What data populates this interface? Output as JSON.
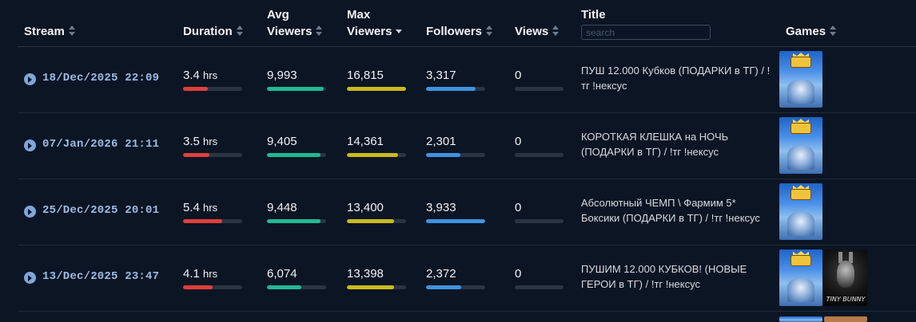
{
  "header": {
    "stream": "Stream",
    "duration": "Duration",
    "avg_line1": "Avg",
    "avg_line2": "Viewers",
    "max_line1": "Max",
    "max_line2": "Viewers",
    "followers": "Followers",
    "views": "Views",
    "title": "Title",
    "search_placeholder": "search",
    "games": "Games"
  },
  "colors": {
    "duration": "#e0403a",
    "avg_viewers": "#22b894",
    "max_viewers": "#c9bb1e",
    "followers": "#3f93de",
    "track": "#2a3442"
  },
  "rows": [
    {
      "date": "18/Dec/2025 22:09",
      "duration_value": "3.4",
      "duration_unit": "hrs",
      "duration_fill": 0.42,
      "avg_viewers": "9,993",
      "avg_fill": 0.96,
      "max_viewers": "16,815",
      "max_fill": 1.0,
      "followers": "3,317",
      "followers_fill": 0.84,
      "views": "0",
      "views_fill": 0,
      "title": "ПУШ 12.000 Кубков (ПОДАРКИ в ТГ) / !тг !нексус",
      "games": [
        "clash-royale-icon"
      ]
    },
    {
      "date": "07/Jan/2026 21:11",
      "duration_value": "3.5",
      "duration_unit": "hrs",
      "duration_fill": 0.44,
      "avg_viewers": "9,405",
      "avg_fill": 0.91,
      "max_viewers": "14,361",
      "max_fill": 0.86,
      "followers": "2,301",
      "followers_fill": 0.58,
      "views": "0",
      "views_fill": 0,
      "title": "КОРОТКАЯ КЛЕШКА на НОЧЬ (ПОДАРКИ в ТГ) / !тг !нексус",
      "games": [
        "clash-royale-icon"
      ]
    },
    {
      "date": "25/Dec/2025 20:01",
      "duration_value": "5.4",
      "duration_unit": "hrs",
      "duration_fill": 0.66,
      "avg_viewers": "9,448",
      "avg_fill": 0.91,
      "max_viewers": "13,400",
      "max_fill": 0.8,
      "followers": "3,933",
      "followers_fill": 1.0,
      "views": "0",
      "views_fill": 0,
      "title": "Абсолютный ЧЕМП \\ Фармим 5* Боксики (ПОДАРКИ в ТГ) / !тг !нексус",
      "games": [
        "clash-royale-icon"
      ]
    },
    {
      "date": "13/Dec/2025 23:47",
      "duration_value": "4.1",
      "duration_unit": "hrs",
      "duration_fill": 0.5,
      "avg_viewers": "6,074",
      "avg_fill": 0.58,
      "max_viewers": "13,398",
      "max_fill": 0.8,
      "followers": "2,372",
      "followers_fill": 0.6,
      "views": "0",
      "views_fill": 0,
      "title": "ПУШИМ 12.000 КУБКОВ! (НОВЫЕ ГЕРОИ в ТГ) / !тг !нексус",
      "games": [
        "clash-royale-icon",
        "tiny-bunny-icon"
      ],
      "game_label_2": "TINY BUNNY"
    }
  ]
}
